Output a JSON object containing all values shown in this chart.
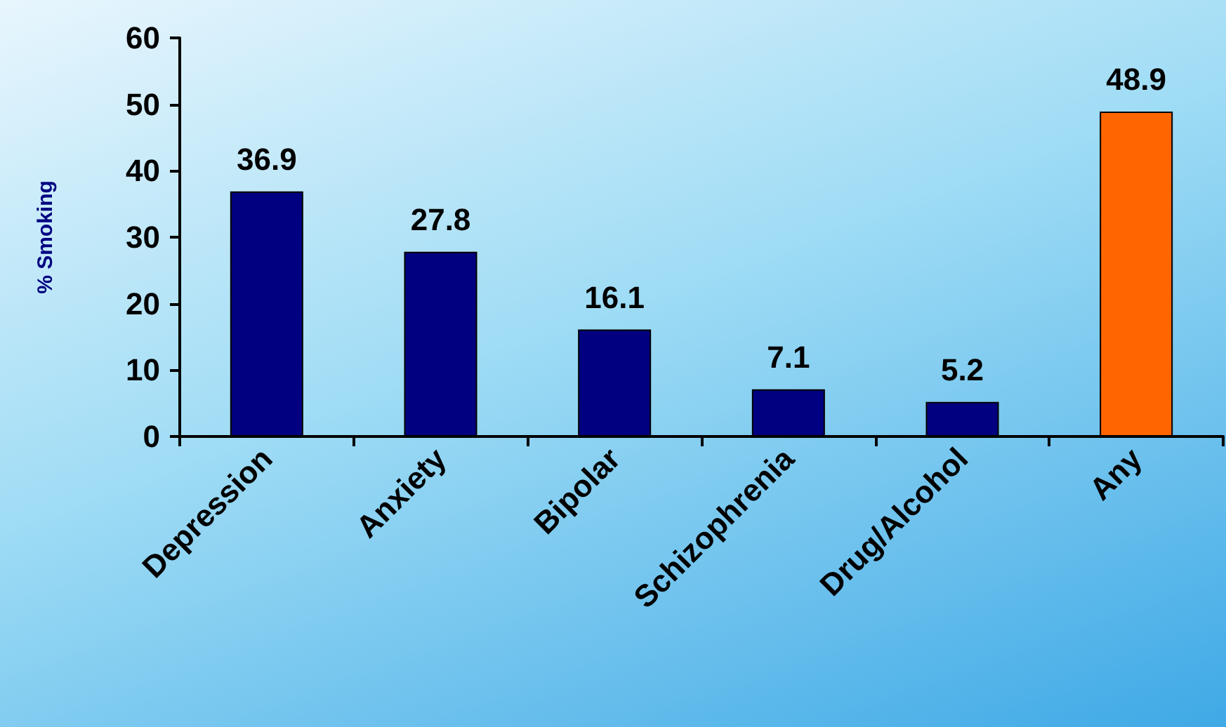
{
  "chart_data": {
    "type": "bar",
    "ylabel": "% Smoking",
    "categories": [
      "Depression",
      "Anxiety",
      "Bipolar",
      "Schizophrenia",
      "Drug/Alcohol",
      "Any"
    ],
    "values": [
      36.9,
      27.8,
      16.1,
      7.1,
      5.2,
      48.9
    ],
    "colors": [
      "#000080",
      "#000080",
      "#000080",
      "#000080",
      "#000080",
      "#ff6600"
    ],
    "ylim": [
      0,
      60
    ],
    "yticks": [
      0,
      10,
      20,
      30,
      40,
      50,
      60
    ],
    "grid": false,
    "data_labels": true
  }
}
